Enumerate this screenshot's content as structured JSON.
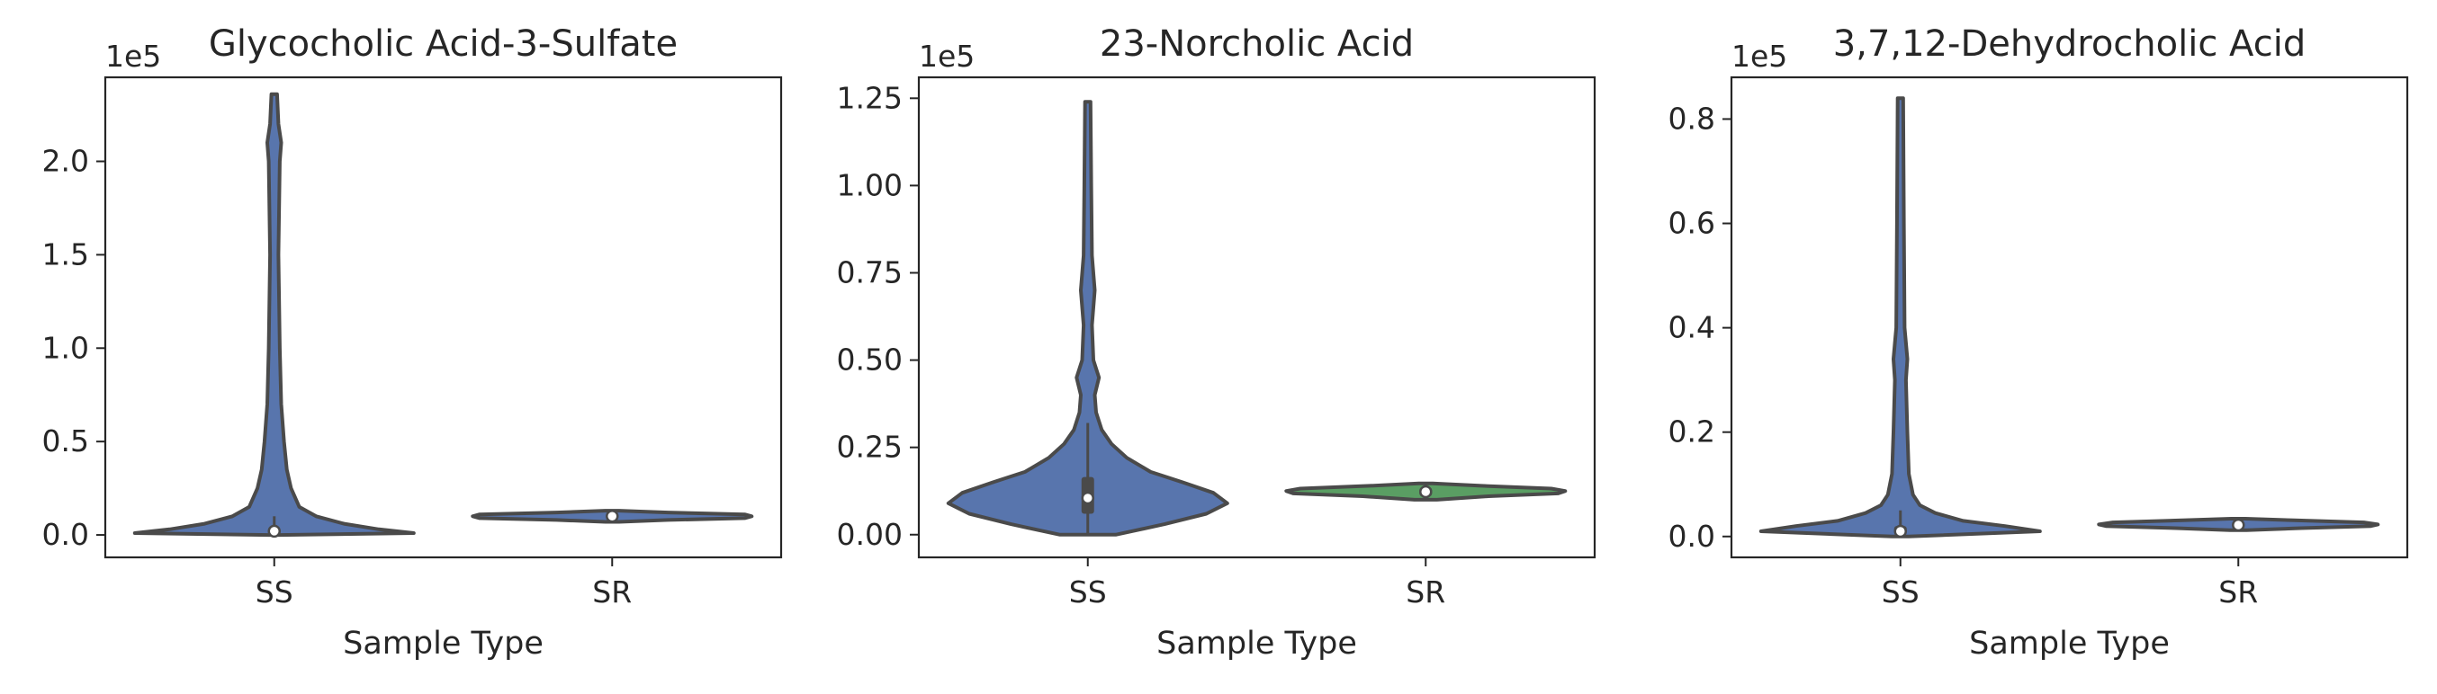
{
  "colors": {
    "violin_SS": "#5875ad",
    "violin_SR_panel2": "#5a9e63",
    "outline": "#4a4a4a",
    "axes": "#262626"
  },
  "chart_data": [
    {
      "type": "violin",
      "title": "Glycocholic Acid-3-Sulfate",
      "xlabel": "Sample Type",
      "ylabel": "",
      "offset_text": "1e5",
      "categories": [
        "SS",
        "SR"
      ],
      "ylim": [
        -0.12,
        2.45
      ],
      "yticks": [
        0.0,
        0.5,
        1.0,
        1.5,
        2.0
      ],
      "ytick_labels": [
        "0.0",
        "0.5",
        "1.0",
        "1.5",
        "2.0"
      ],
      "grid": false,
      "violins": [
        {
          "category": "SS",
          "color": "#5875ad",
          "median": 0.02,
          "q1": 0.01,
          "q3": 0.03,
          "whisker_low": 0.0,
          "whisker_high": 0.1,
          "profile": [
            [
              0.0,
              0.04
            ],
            [
              0.01,
              1.0
            ],
            [
              0.03,
              0.75
            ],
            [
              0.06,
              0.5
            ],
            [
              0.1,
              0.3
            ],
            [
              0.15,
              0.18
            ],
            [
              0.25,
              0.12
            ],
            [
              0.35,
              0.09
            ],
            [
              0.5,
              0.07
            ],
            [
              0.7,
              0.05
            ],
            [
              1.0,
              0.04
            ],
            [
              1.5,
              0.03
            ],
            [
              2.0,
              0.04
            ],
            [
              2.1,
              0.05
            ],
            [
              2.2,
              0.03
            ],
            [
              2.36,
              0.02
            ]
          ]
        },
        {
          "category": "SR",
          "color": "#5875ad",
          "median": 0.1,
          "q1": 0.085,
          "q3": 0.115,
          "whisker_low": 0.07,
          "whisker_high": 0.12,
          "profile": [
            [
              0.07,
              0.05
            ],
            [
              0.08,
              0.4
            ],
            [
              0.09,
              0.95
            ],
            [
              0.1,
              1.0
            ],
            [
              0.11,
              0.95
            ],
            [
              0.12,
              0.4
            ],
            [
              0.13,
              0.05
            ]
          ]
        }
      ]
    },
    {
      "type": "violin",
      "title": "23-Norcholic Acid",
      "xlabel": "Sample Type",
      "ylabel": "",
      "offset_text": "1e5",
      "categories": [
        "SS",
        "SR"
      ],
      "ylim": [
        -0.065,
        1.31
      ],
      "yticks": [
        0.0,
        0.25,
        0.5,
        0.75,
        1.0,
        1.25
      ],
      "ytick_labels": [
        "0.00",
        "0.25",
        "0.50",
        "0.75",
        "1.00",
        "1.25"
      ],
      "grid": false,
      "violins": [
        {
          "category": "SS",
          "color": "#5875ad",
          "median": 0.105,
          "q1": 0.06,
          "q3": 0.165,
          "whisker_low": 0.0,
          "whisker_high": 0.32,
          "profile": [
            [
              0.0,
              0.2
            ],
            [
              0.03,
              0.55
            ],
            [
              0.06,
              0.85
            ],
            [
              0.09,
              1.0
            ],
            [
              0.12,
              0.9
            ],
            [
              0.15,
              0.68
            ],
            [
              0.18,
              0.45
            ],
            [
              0.22,
              0.28
            ],
            [
              0.26,
              0.17
            ],
            [
              0.3,
              0.1
            ],
            [
              0.35,
              0.06
            ],
            [
              0.4,
              0.05
            ],
            [
              0.45,
              0.08
            ],
            [
              0.5,
              0.04
            ],
            [
              0.6,
              0.03
            ],
            [
              0.7,
              0.05
            ],
            [
              0.8,
              0.03
            ],
            [
              1.0,
              0.025
            ],
            [
              1.24,
              0.02
            ]
          ]
        },
        {
          "category": "SR",
          "color": "#5a9e63",
          "median": 0.123,
          "q1": 0.11,
          "q3": 0.135,
          "whisker_low": 0.1,
          "whisker_high": 0.145,
          "profile": [
            [
              0.1,
              0.08
            ],
            [
              0.11,
              0.45
            ],
            [
              0.118,
              0.95
            ],
            [
              0.125,
              1.0
            ],
            [
              0.132,
              0.9
            ],
            [
              0.14,
              0.4
            ],
            [
              0.147,
              0.05
            ]
          ]
        }
      ]
    },
    {
      "type": "violin",
      "title": "3,7,12-Dehydrocholic Acid",
      "xlabel": "Sample Type",
      "ylabel": "",
      "offset_text": "1e5",
      "categories": [
        "SS",
        "SR"
      ],
      "ylim": [
        -0.04,
        0.88
      ],
      "yticks": [
        0.0,
        0.2,
        0.4,
        0.6,
        0.8
      ],
      "ytick_labels": [
        "0.0",
        "0.2",
        "0.4",
        "0.6",
        "0.8"
      ],
      "grid": false,
      "violins": [
        {
          "category": "SS",
          "color": "#5875ad",
          "median": 0.01,
          "q1": 0.005,
          "q3": 0.02,
          "whisker_low": 0.0,
          "whisker_high": 0.05,
          "profile": [
            [
              0.0,
              0.06
            ],
            [
              0.01,
              1.0
            ],
            [
              0.02,
              0.75
            ],
            [
              0.03,
              0.45
            ],
            [
              0.045,
              0.25
            ],
            [
              0.06,
              0.14
            ],
            [
              0.08,
              0.09
            ],
            [
              0.12,
              0.06
            ],
            [
              0.2,
              0.05
            ],
            [
              0.3,
              0.04
            ],
            [
              0.34,
              0.05
            ],
            [
              0.4,
              0.03
            ],
            [
              0.6,
              0.025
            ],
            [
              0.84,
              0.02
            ]
          ]
        },
        {
          "category": "SR",
          "color": "#5875ad",
          "median": 0.022,
          "q1": 0.017,
          "q3": 0.027,
          "whisker_low": 0.012,
          "whisker_high": 0.03,
          "profile": [
            [
              0.012,
              0.06
            ],
            [
              0.016,
              0.45
            ],
            [
              0.02,
              0.95
            ],
            [
              0.023,
              1.0
            ],
            [
              0.027,
              0.9
            ],
            [
              0.031,
              0.4
            ],
            [
              0.034,
              0.05
            ]
          ]
        }
      ]
    }
  ]
}
